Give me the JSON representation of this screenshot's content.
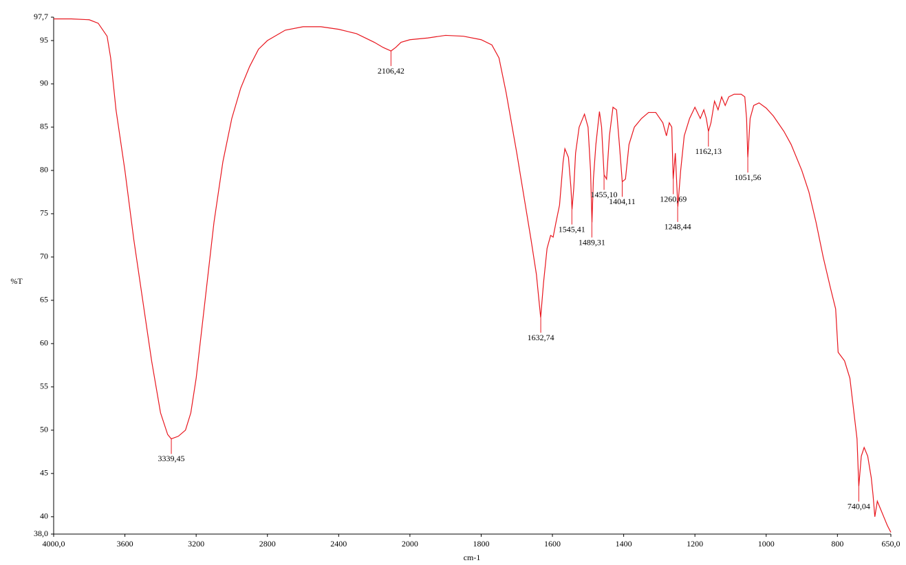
{
  "chart_data": {
    "type": "line",
    "x_label": "cm-1",
    "y_label": "%T",
    "xlim": [
      4000,
      650
    ],
    "ylim": [
      38,
      97.7
    ],
    "x_scale_break": 2000,
    "x_scale_factor": 2,
    "xticks": [
      {
        "value": 4000,
        "label": "4000,0"
      },
      3600,
      3200,
      2800,
      2400,
      2000,
      1800,
      1600,
      1400,
      1200,
      1000,
      800,
      {
        "value": 650,
        "label": "650,0"
      }
    ],
    "yticks": [
      {
        "value": 38,
        "label": "38,0"
      },
      40,
      45,
      50,
      55,
      60,
      65,
      70,
      75,
      80,
      85,
      90,
      95,
      {
        "value": 97.7,
        "label": "97,7"
      }
    ],
    "series": [
      {
        "color": "#e8141c",
        "x": [
          4000,
          3900,
          3800,
          3750,
          3700,
          3680,
          3650,
          3600,
          3550,
          3500,
          3450,
          3400,
          3360,
          3340,
          3300,
          3260,
          3230,
          3200,
          3150,
          3100,
          3050,
          3000,
          2950,
          2900,
          2850,
          2800,
          2700,
          2600,
          2500,
          2400,
          2300,
          2200,
          2150,
          2106,
          2080,
          2050,
          2000,
          1950,
          1900,
          1850,
          1800,
          1770,
          1750,
          1730,
          1700,
          1680,
          1660,
          1645,
          1633,
          1625,
          1615,
          1605,
          1598,
          1590,
          1580,
          1570,
          1565,
          1555,
          1548,
          1545,
          1540,
          1535,
          1525,
          1510,
          1500,
          1493,
          1489,
          1485,
          1478,
          1468,
          1462,
          1455,
          1448,
          1440,
          1430,
          1420,
          1412,
          1404,
          1395,
          1385,
          1370,
          1350,
          1330,
          1310,
          1290,
          1280,
          1272,
          1265,
          1261,
          1255,
          1248,
          1240,
          1230,
          1215,
          1200,
          1185,
          1175,
          1168,
          1162,
          1155,
          1145,
          1135,
          1125,
          1115,
          1105,
          1090,
          1070,
          1060,
          1055,
          1051.56,
          1045,
          1035,
          1020,
          1000,
          980,
          950,
          930,
          900,
          880,
          860,
          840,
          820,
          805,
          798,
          780,
          765,
          755,
          745,
          740,
          733,
          725,
          715,
          705,
          700,
          695,
          688,
          680,
          670,
          660,
          650
        ],
        "values": [
          97.5,
          97.5,
          97.4,
          97.0,
          95.5,
          93,
          87,
          80,
          72,
          65,
          58,
          52,
          49.5,
          49,
          49.3,
          50,
          52,
          56,
          65,
          74,
          81,
          86,
          89.5,
          92,
          94,
          95,
          96.2,
          96.6,
          96.6,
          96.3,
          95.8,
          94.8,
          94.2,
          93.8,
          94.2,
          94.8,
          95.1,
          95.3,
          95.6,
          95.5,
          95.1,
          94.5,
          93,
          89,
          82,
          77,
          72,
          68,
          63,
          67,
          71,
          72.5,
          72.3,
          74,
          76,
          81,
          82.5,
          81.5,
          78,
          75.5,
          78,
          82,
          85,
          86.5,
          85,
          80,
          74,
          79,
          83,
          86.8,
          85,
          79.5,
          79,
          84,
          87.3,
          87,
          83,
          78.7,
          79,
          83,
          85,
          86,
          86.7,
          86.7,
          85.5,
          84,
          85.5,
          85,
          79,
          82,
          75.8,
          80,
          84,
          86,
          87.3,
          86,
          87,
          86,
          84.5,
          85.5,
          88,
          87,
          88.5,
          87.5,
          88.5,
          88.8,
          88.8,
          88.5,
          86,
          81.5,
          86,
          87.5,
          87.8,
          87.2,
          86.3,
          84.5,
          83,
          80,
          77.5,
          74,
          70,
          66.5,
          64,
          59,
          58,
          56,
          52.5,
          49,
          43.5,
          47,
          48,
          47,
          44.5,
          42.5,
          40,
          41.8,
          41,
          40,
          39,
          38.2
        ]
      }
    ],
    "annotations": [
      {
        "x": 3339.45,
        "y": 49,
        "label": "3339,45"
      },
      {
        "x": 2106.42,
        "y": 93.8,
        "label": "2106,42"
      },
      {
        "x": 1632.74,
        "y": 63,
        "label": "1632,74"
      },
      {
        "x": 1545.41,
        "y": 75.5,
        "label": "1545,41"
      },
      {
        "x": 1489.31,
        "y": 74,
        "label": "1489,31"
      },
      {
        "x": 1455.1,
        "y": 79.5,
        "label": "1455,10"
      },
      {
        "x": 1404.11,
        "y": 78.7,
        "label": "1404,11"
      },
      {
        "x": 1260.69,
        "y": 79,
        "label": "1260,69"
      },
      {
        "x": 1248.44,
        "y": 75.8,
        "label": "1248,44"
      },
      {
        "x": 1162.13,
        "y": 84.5,
        "label": "1162,13"
      },
      {
        "x": 1051.56,
        "y": 81.5,
        "label": "1051,56"
      },
      {
        "x": 740.04,
        "y": 43.5,
        "label": "740,04"
      }
    ]
  }
}
